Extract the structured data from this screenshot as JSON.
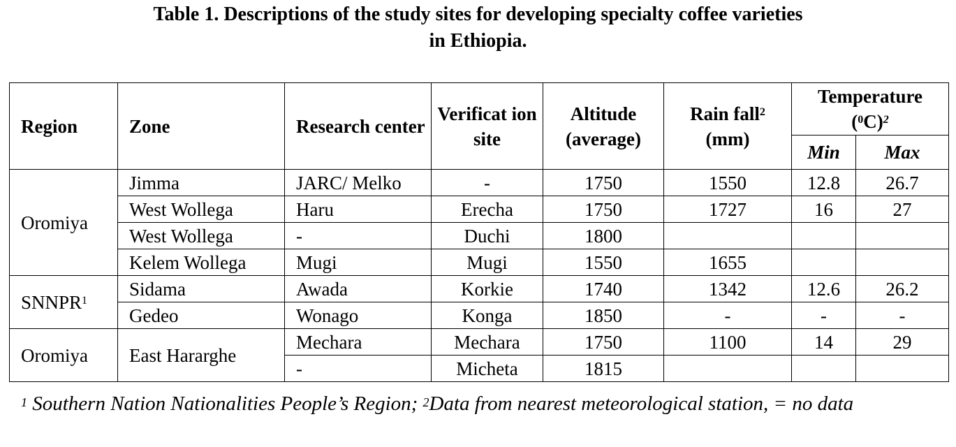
{
  "title": {
    "line1": "Table 1. Descriptions of the study sites for developing specialty coffee varieties",
    "line2": "in Ethiopia."
  },
  "headers": {
    "region": "Region",
    "zone": "Zone",
    "research_center": "Research center",
    "verification_site": "Verificat ion site",
    "altitude": "Altitude (average)",
    "rainfall": "Rain fall",
    "rainfall_sup": "2",
    "rainfall_unit": "(mm)",
    "temperature": "Temperature",
    "temperature_unit_open": "(",
    "temperature_unit_sup": "0",
    "temperature_unit_close": "C)",
    "temperature_sup": "2",
    "min": "Min",
    "max": "Max"
  },
  "groups": [
    {
      "region": "Oromiya",
      "region_sup": ""
    },
    {
      "region": "SNNPR",
      "region_sup": "1"
    },
    {
      "region": "Oromiya",
      "region_sup": ""
    }
  ],
  "rows": [
    {
      "zone": "Jimma",
      "research": "JARC/ Melko",
      "verification": "-",
      "altitude": "1750",
      "rainfall": "1550",
      "min": "12.8",
      "max": "26.7"
    },
    {
      "zone": "West Wollega",
      "research": "Haru",
      "verification": "Erecha",
      "altitude": "1750",
      "rainfall": "1727",
      "min": "16",
      "max": "27"
    },
    {
      "zone": "West Wollega",
      "research": "-",
      "verification": "Duchi",
      "altitude": "1800",
      "rainfall": "",
      "min": "",
      "max": ""
    },
    {
      "zone": "Kelem Wollega",
      "research": "Mugi",
      "verification": "Mugi",
      "altitude": "1550",
      "rainfall": "1655",
      "min": "",
      "max": ""
    },
    {
      "zone": "Sidama",
      "research": "Awada",
      "verification": "Korkie",
      "altitude": "1740",
      "rainfall": "1342",
      "min": "12.6",
      "max": "26.2"
    },
    {
      "zone": "Gedeo",
      "research": "Wonago",
      "verification": "Konga",
      "altitude": "1850",
      "rainfall": "-",
      "min": "-",
      "max": "-"
    },
    {
      "zone": "East Hararghe",
      "research": "Mechara",
      "verification": "Mechara",
      "altitude": "1750",
      "rainfall": "1100",
      "min": "14",
      "max": "29"
    },
    {
      "zone": "",
      "research": "-",
      "verification": "Micheta",
      "altitude": "1815",
      "rainfall": "",
      "min": "",
      "max": ""
    }
  ],
  "footnote": {
    "sup1": "1",
    "text1": " Southern Nation Nationalities People’s Region; ",
    "sup2": "2",
    "text2": "Data from nearest meteorological station, = no data"
  }
}
